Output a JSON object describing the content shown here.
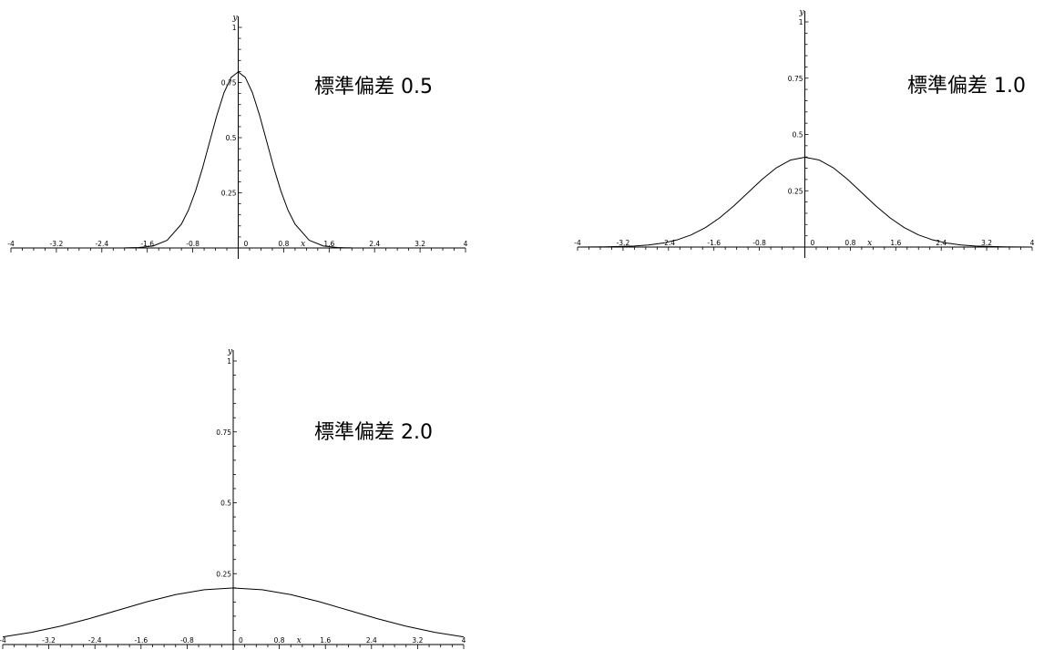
{
  "chart_data": [
    {
      "type": "line",
      "title": "標準偏差 0.5",
      "xlabel": "x",
      "ylabel": "y",
      "xlim": [
        -4,
        4
      ],
      "ylim": [
        0,
        1
      ],
      "x_ticks": [
        "-4",
        "-3.2",
        "-2.4",
        "-1.6",
        "-0.8",
        "0",
        "0.8",
        "1.6",
        "2.4",
        "3.2",
        "4"
      ],
      "y_ticks": [
        "0.25",
        "0.5",
        "0.75",
        "1"
      ],
      "grid": false,
      "series": [
        {
          "x": [
            -4,
            -3.5,
            -3,
            -2.5,
            -2,
            -1.75,
            -1.5,
            -1.25,
            -1,
            -0.875,
            -0.75,
            -0.625,
            -0.5,
            -0.375,
            -0.25,
            -0.125,
            0,
            0.125,
            0.25,
            0.375,
            0.5,
            0.625,
            0.75,
            0.875,
            1,
            1.25,
            1.5,
            1.75,
            2,
            2.5,
            3,
            3.5,
            4
          ],
          "values": [
            0,
            0,
            0,
            0,
            0.0003,
            0.0019,
            0.0089,
            0.035,
            0.108,
            0.172,
            0.259,
            0.365,
            0.484,
            0.602,
            0.704,
            0.773,
            0.798,
            0.773,
            0.704,
            0.602,
            0.484,
            0.365,
            0.259,
            0.172,
            0.108,
            0.035,
            0.0089,
            0.0019,
            0.0003,
            0,
            0,
            0,
            0
          ]
        }
      ]
    },
    {
      "type": "line",
      "title": "標準偏差 1.0",
      "xlabel": "x",
      "ylabel": "y",
      "xlim": [
        -4,
        4
      ],
      "ylim": [
        0,
        1
      ],
      "x_ticks": [
        "-4",
        "-3.2",
        "-2.4",
        "-1.6",
        "-0.8",
        "0",
        "0.8",
        "1.6",
        "2.4",
        "3.2",
        "4"
      ],
      "y_ticks": [
        "0.25",
        "0.5",
        "0.75",
        "1"
      ],
      "grid": false,
      "series": [
        {
          "x": [
            -4,
            -3.5,
            -3,
            -2.75,
            -2.5,
            -2.25,
            -2,
            -1.75,
            -1.5,
            -1.25,
            -1,
            -0.75,
            -0.5,
            -0.25,
            0,
            0.25,
            0.5,
            0.75,
            1,
            1.25,
            1.5,
            1.75,
            2,
            2.25,
            2.5,
            2.75,
            3,
            3.5,
            4
          ],
          "values": [
            0.0001,
            0.0009,
            0.0044,
            0.0091,
            0.0175,
            0.0317,
            0.054,
            0.0863,
            0.1295,
            0.1826,
            0.242,
            0.3011,
            0.3521,
            0.3867,
            0.3989,
            0.3867,
            0.3521,
            0.3011,
            0.242,
            0.1826,
            0.1295,
            0.0863,
            0.054,
            0.0317,
            0.0175,
            0.0091,
            0.0044,
            0.0009,
            0.0001
          ]
        }
      ]
    },
    {
      "type": "line",
      "title": "標準偏差 2.0",
      "xlabel": "x",
      "ylabel": "y",
      "xlim": [
        -4,
        4
      ],
      "ylim": [
        0,
        1
      ],
      "x_ticks": [
        "-4",
        "-3.2",
        "-2.4",
        "-1.6",
        "-0.8",
        "0",
        "0.8",
        "1.6",
        "2.4",
        "3.2",
        "4"
      ],
      "y_ticks": [
        "0.25",
        "0.5",
        "0.75",
        "1"
      ],
      "grid": false,
      "series": [
        {
          "x": [
            -4,
            -3.5,
            -3,
            -2.5,
            -2,
            -1.5,
            -1,
            -0.5,
            0,
            0.5,
            1,
            1.5,
            2,
            2.5,
            3,
            3.5,
            4
          ],
          "values": [
            0.027,
            0.0431,
            0.0648,
            0.0913,
            0.121,
            0.1506,
            0.176,
            0.1933,
            0.1995,
            0.1933,
            0.176,
            0.1506,
            0.121,
            0.0913,
            0.0648,
            0.0431,
            0.027
          ]
        }
      ]
    }
  ]
}
